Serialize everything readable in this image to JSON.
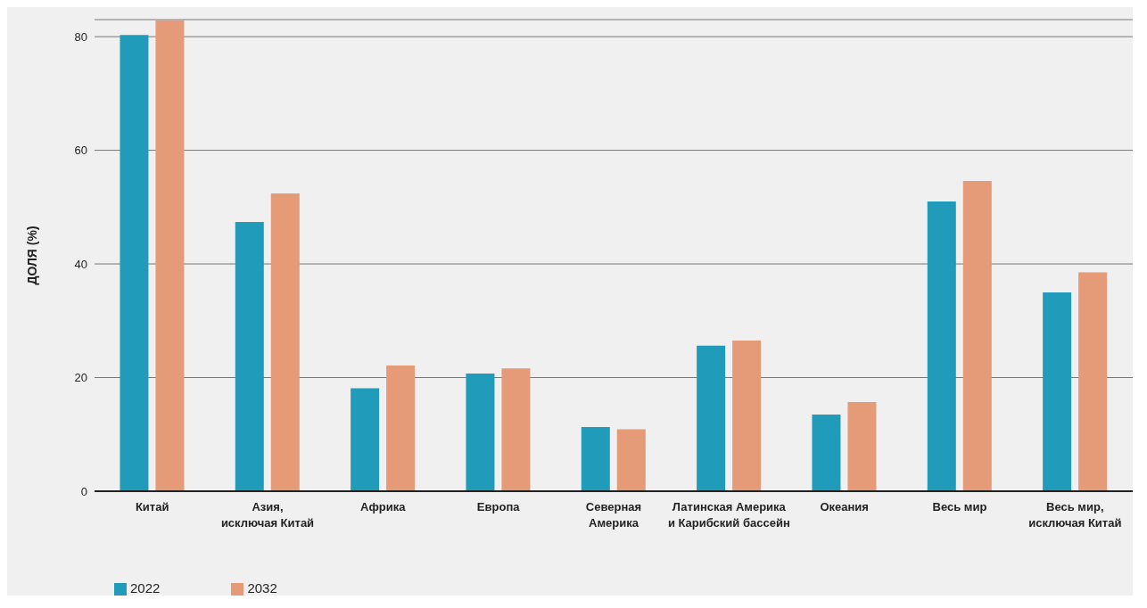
{
  "chart_data": {
    "type": "bar",
    "ylabel": "ДОЛЯ (%)",
    "categories": [
      "Китай",
      "Азия,\nисключая Китай",
      "Африка",
      "Европа",
      "Северная\nАмерика",
      "Латинская Америка\nи Карибский бассейн",
      "Океания",
      "Весь мир",
      "Весь мир,\nисключая Китай"
    ],
    "series": [
      {
        "name": "2022",
        "color": "#219bba",
        "values": [
          80.3,
          47.4,
          18.1,
          20.7,
          11.3,
          25.6,
          13.5,
          51.0,
          35.0
        ]
      },
      {
        "name": "2032",
        "color": "#e59a78",
        "values": [
          82.9,
          52.4,
          22.1,
          21.6,
          10.9,
          26.5,
          15.7,
          54.6,
          38.5
        ]
      }
    ],
    "ylim": [
      0,
      83
    ],
    "yticks": [
      0,
      20,
      40,
      60,
      80
    ],
    "grid": "y",
    "legend": "bottom left"
  }
}
